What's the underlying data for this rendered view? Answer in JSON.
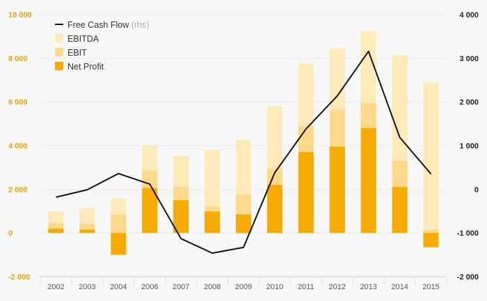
{
  "chart_data": {
    "type": "bar",
    "title": "",
    "categories": [
      "2002",
      "2003",
      "2004",
      "2006",
      "2007",
      "2008",
      "2009",
      "2010",
      "2011",
      "2012",
      "2013",
      "2014",
      "2015"
    ],
    "series": [
      {
        "name": "EBITDA",
        "kind": "bar",
        "axis": "left",
        "color": "#fdeab8",
        "values": [
          1000,
          1150,
          1600,
          4000,
          3550,
          3800,
          4250,
          5800,
          7750,
          8450,
          9250,
          8150,
          6900
        ]
      },
      {
        "name": "EBIT",
        "kind": "bar",
        "axis": "left",
        "color": "#fcd88a",
        "values": [
          450,
          420,
          850,
          2850,
          2100,
          1200,
          1750,
          2950,
          4900,
          5650,
          5950,
          3300,
          150
        ]
      },
      {
        "name": "Net Profit",
        "kind": "bar",
        "axis": "left",
        "color": "#f5ab00",
        "values": [
          200,
          150,
          -1000,
          2050,
          1500,
          980,
          850,
          2200,
          3700,
          3950,
          4800,
          2100,
          -650
        ]
      },
      {
        "name": "Free Cash Flow",
        "kind": "line",
        "axis": "right",
        "color": "#111111",
        "values": [
          -180,
          -10,
          360,
          120,
          -1130,
          -1460,
          -1330,
          380,
          1380,
          2140,
          3160,
          1190,
          350
        ]
      }
    ],
    "legend": {
      "position": "top-left",
      "items": [
        {
          "label": "Free Cash Flow",
          "suffix": "(rhs)",
          "swatch": "line",
          "color": "#111111"
        },
        {
          "label": "EBITDA",
          "suffix": "",
          "swatch": "box",
          "color": "#fdeab8"
        },
        {
          "label": "EBIT",
          "suffix": "",
          "swatch": "box",
          "color": "#fcd88a"
        },
        {
          "label": "Net Profit",
          "suffix": "",
          "swatch": "box",
          "color": "#f5ab00"
        }
      ]
    },
    "y_left": {
      "range": [
        -2000,
        10000
      ],
      "ticks": [
        -2000,
        0,
        2000,
        4000,
        6000,
        8000,
        10000
      ],
      "tick_labels": [
        "-2 000",
        "0",
        "2 000",
        "4 000",
        "6 000",
        "8 000",
        "10 000"
      ],
      "color": "#e8a200"
    },
    "y_right": {
      "range": [
        -2000,
        4000
      ],
      "ticks": [
        -2000,
        -1000,
        0,
        1000,
        2000,
        3000,
        4000
      ],
      "tick_labels": [
        "-2 000",
        "-1 000",
        "0",
        "1 000",
        "2 000",
        "3 000",
        "4 000"
      ],
      "color": "#222222"
    },
    "grid": true
  }
}
